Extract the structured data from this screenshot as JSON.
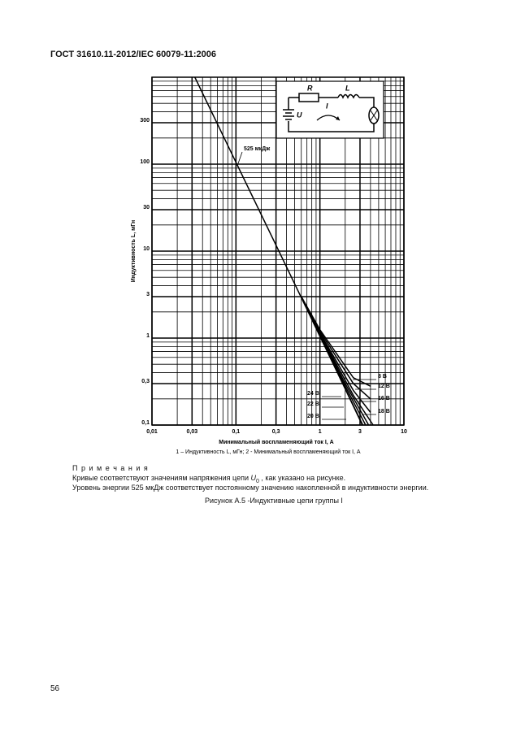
{
  "header": "ГОСТ 31610.11-2012/IEC 60079-11:2006",
  "chart_data": {
    "type": "line",
    "x_label": "Минимальный воспламеняющий ток I, А",
    "y_label": "Индуктивность L, мГн",
    "inset_labels": {
      "r": "R",
      "l": "L",
      "i": "I",
      "u": "U"
    },
    "log_x": true,
    "log_y": true,
    "grid": true,
    "xlim": [
      0.01,
      10
    ],
    "ylim": [
      0.1,
      1000
    ],
    "xticks": [
      {
        "value": 0.01,
        "label": "0,01"
      },
      {
        "value": 0.03,
        "label": "0,03"
      },
      {
        "value": 0.1,
        "label": "0,1"
      },
      {
        "value": 0.3,
        "label": "0,3"
      },
      1,
      3,
      10
    ],
    "yticks": [
      {
        "value": 0.1,
        "label": "0,1"
      },
      {
        "value": 0.3,
        "label": "0,3"
      },
      1,
      3,
      10,
      30,
      100,
      300
    ],
    "series": [
      {
        "name": "525 мкДж",
        "color": "#000000",
        "x": [
          0.0324,
          0.1,
          0.3,
          1,
          3.24
        ],
        "values": [
          1000,
          105,
          11.7,
          1.05,
          0.1
        ]
      },
      {
        "name": "24 В",
        "color": "#000000",
        "x": [
          0.6,
          1,
          2,
          3.2
        ],
        "values": [
          3,
          1.05,
          0.26,
          0.1
        ]
      },
      {
        "name": "22 В",
        "color": "#000000",
        "x": [
          0.6,
          1,
          2,
          3.5
        ],
        "values": [
          3,
          1.08,
          0.28,
          0.1
        ]
      },
      {
        "name": "20 В",
        "color": "#000000",
        "x": [
          0.6,
          1,
          2,
          3.8
        ],
        "values": [
          3,
          1.1,
          0.3,
          0.1
        ]
      },
      {
        "name": "18 В",
        "color": "#000000",
        "x": [
          0.6,
          1,
          2.5,
          4.3
        ],
        "values": [
          3,
          1.12,
          0.22,
          0.1
        ]
      },
      {
        "name": "16 В",
        "color": "#000000",
        "x": [
          0.6,
          1,
          2.5,
          4
        ],
        "values": [
          3,
          1.15,
          0.25,
          0.14
        ]
      },
      {
        "name": "12 В",
        "color": "#000000",
        "x": [
          0.6,
          1,
          2.5,
          4
        ],
        "values": [
          3,
          1.2,
          0.3,
          0.2
        ]
      },
      {
        "name": "8 В",
        "color": "#000000",
        "x": [
          0.6,
          1,
          2.5,
          4
        ],
        "values": [
          3,
          1.25,
          0.35,
          0.28
        ]
      }
    ]
  },
  "figure_note": "1 – Индуктивность L, мГн; 2 - Минимальный воспламеняющий ток I, А",
  "notes": {
    "title": "П р и м е ч а н и я",
    "line1": [
      "Кривые соответствуют значениям напряжения цепи ",
      "U",
      "0",
      " , как указано на рисунке."
    ],
    "line2": "Уровень энергии 525 мкДж соответствует постоянному значению накопленной в индуктивности энергии."
  },
  "caption": "Рисунок А.5 -Индуктивные цепи группы I",
  "page_number": "56"
}
